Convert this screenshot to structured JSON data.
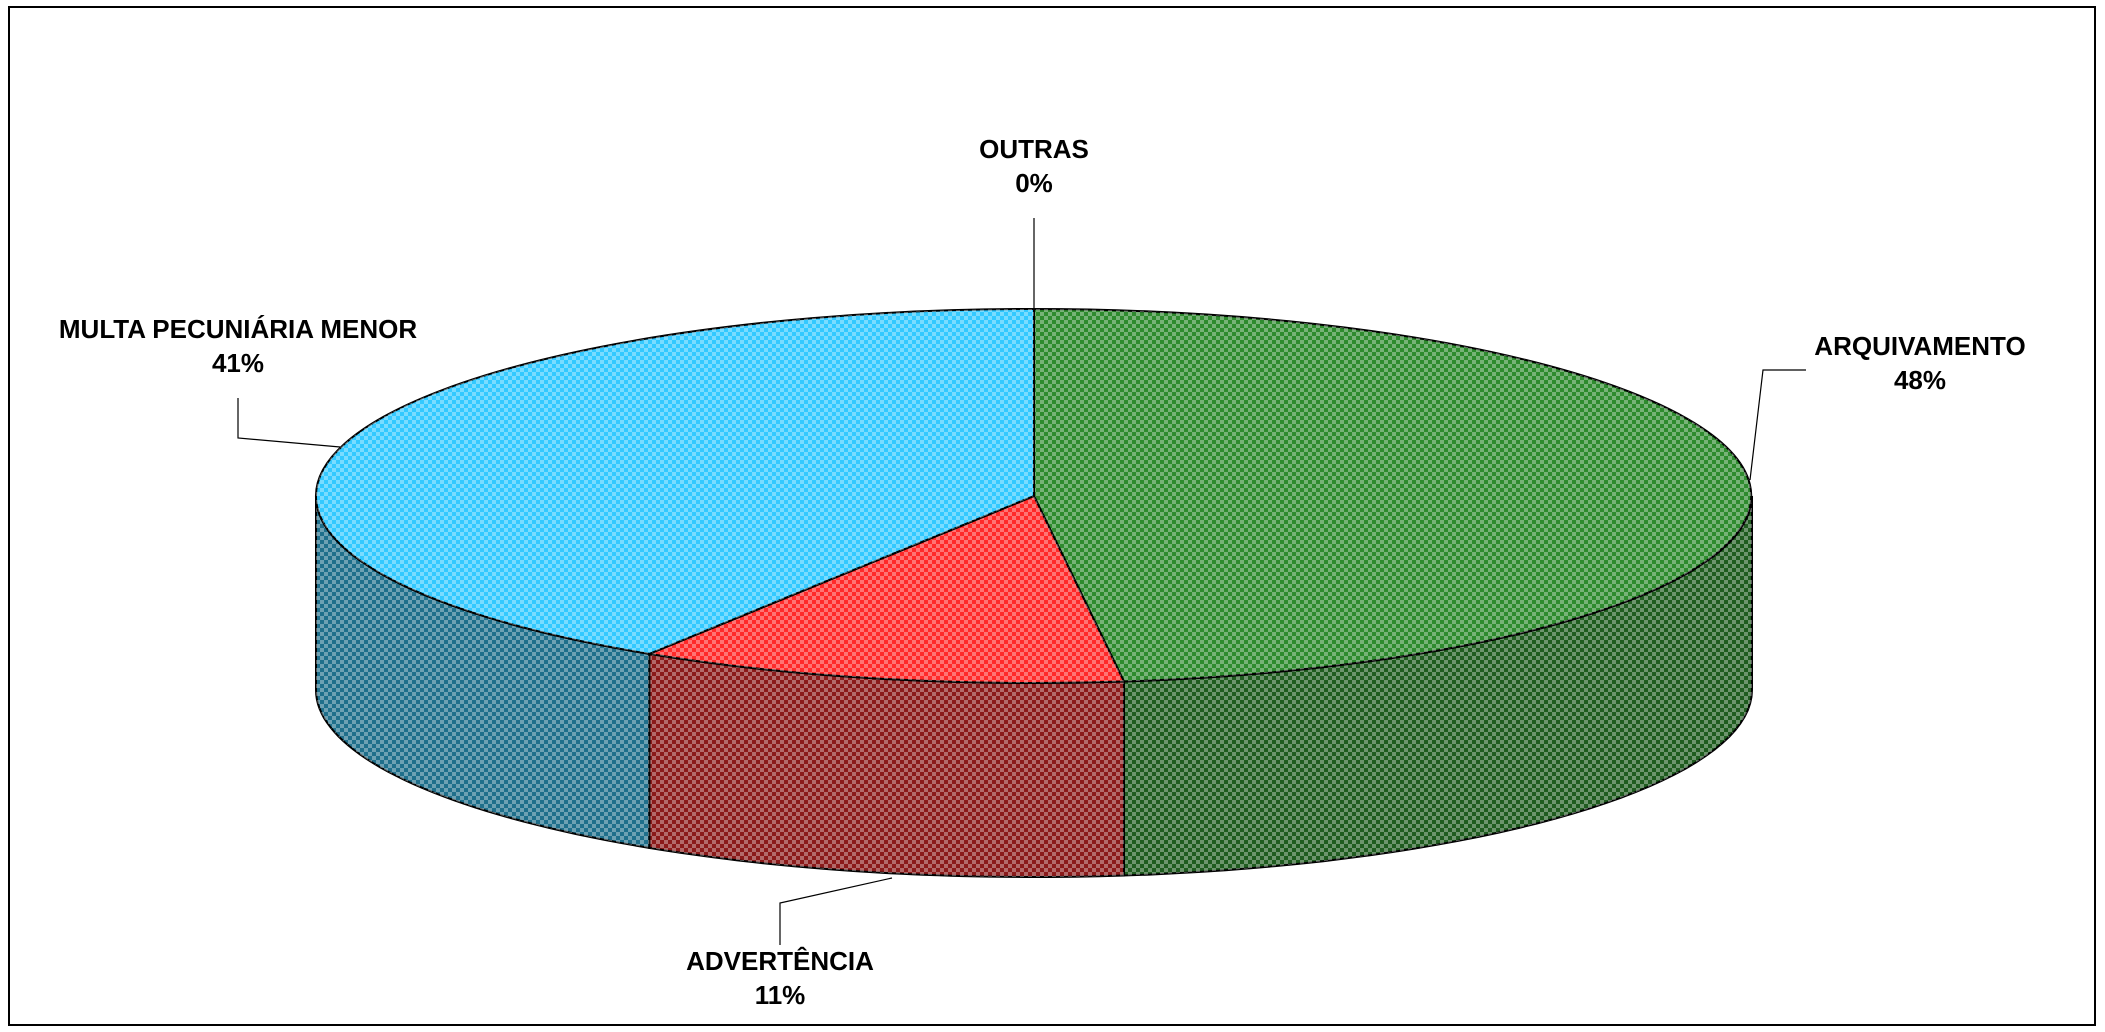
{
  "chart_data": {
    "type": "pie",
    "style": "3d",
    "title": "",
    "slices": [
      {
        "label": "ARQUIVAMENTO",
        "value": 48,
        "display": "48%",
        "color": "#2e8b2e",
        "side_color": "#1f5c1f"
      },
      {
        "label": "ADVERTÊNCIA",
        "value": 11,
        "display": "11%",
        "color": "#ff2a2a",
        "side_color": "#8b1a1a"
      },
      {
        "label": "MULTA PECUNIÁRIA MENOR",
        "value": 41,
        "display": "41%",
        "color": "#33c9ff",
        "side_color": "#1f6f8b"
      },
      {
        "label": "OUTRAS",
        "value": 0,
        "display": "0%",
        "color": "#ffffff",
        "side_color": "#cccccc"
      }
    ],
    "pattern": "checkered"
  }
}
